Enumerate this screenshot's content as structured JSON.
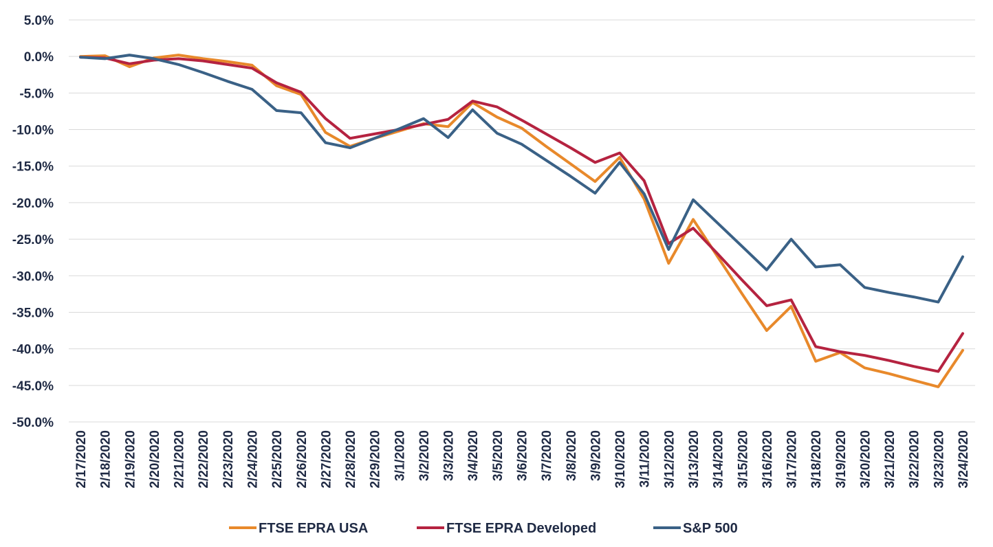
{
  "chart_data": {
    "type": "line",
    "title": "",
    "xlabel": "",
    "ylabel": "",
    "x": [
      "2/17/2020",
      "2/18/2020",
      "2/19/2020",
      "2/20/2020",
      "2/21/2020",
      "2/22/2020",
      "2/23/2020",
      "2/24/2020",
      "2/25/2020",
      "2/26/2020",
      "2/27/2020",
      "2/28/2020",
      "2/29/2020",
      "3/1/2020",
      "3/2/2020",
      "3/3/2020",
      "3/4/2020",
      "3/5/2020",
      "3/6/2020",
      "3/7/2020",
      "3/8/2020",
      "3/9/2020",
      "3/10/2020",
      "3/11/2020",
      "3/12/2020",
      "3/13/2020",
      "3/14/2020",
      "3/15/2020",
      "3/16/2020",
      "3/17/2020",
      "3/18/2020",
      "3/19/2020",
      "3/20/2020",
      "3/21/2020",
      "3/22/2020",
      "3/23/2020",
      "3/24/2020"
    ],
    "ylim": [
      -50,
      5
    ],
    "yticks": [
      5,
      0,
      -5,
      -10,
      -15,
      -20,
      -25,
      -30,
      -35,
      -40,
      -45,
      -50
    ],
    "ytick_labels": [
      "5.0%",
      "0.0%",
      "-5.0%",
      "-10.0%",
      "-15.0%",
      "-20.0%",
      "-25.0%",
      "-30.0%",
      "-35.0%",
      "-40.0%",
      "-45.0%",
      "-50.0%"
    ],
    "grid": true,
    "legend_position": "bottom",
    "series": [
      {
        "name": "FTSE EPRA USA",
        "color": "#E8892B",
        "values": [
          0.0,
          0.1,
          -1.4,
          -0.2,
          0.2,
          -0.3,
          -0.7,
          -1.2,
          -4.0,
          -5.2,
          -10.4,
          -12.3,
          -11.2,
          -10.2,
          -9.2,
          -9.6,
          -6.3,
          -8.3,
          -9.8,
          -12.3,
          -14.7,
          -17.1,
          -13.8,
          -19.5,
          -28.3,
          -22.3,
          -27.4,
          -32.5,
          -37.5,
          -34.2,
          -41.7,
          -40.5,
          -42.6,
          -43.4,
          -44.3,
          -45.2,
          -40.2
        ]
      },
      {
        "name": "FTSE EPRA Developed",
        "color": "#B52340",
        "values": [
          -0.1,
          -0.2,
          -1.0,
          -0.5,
          -0.3,
          -0.6,
          -1.1,
          -1.6,
          -3.6,
          -4.9,
          -8.5,
          -11.2,
          -10.6,
          -10.0,
          -9.3,
          -8.6,
          -6.1,
          -6.9,
          -8.7,
          -10.6,
          -12.5,
          -14.5,
          -13.2,
          -17.0,
          -25.6,
          -23.5,
          -27.0,
          -30.6,
          -34.1,
          -33.3,
          -39.7,
          -40.4,
          -40.9,
          -41.6,
          -42.4,
          -43.1,
          -37.9
        ]
      },
      {
        "name": "S&P 500",
        "color": "#3A6186",
        "values": [
          -0.1,
          -0.3,
          0.2,
          -0.3,
          -1.1,
          -2.2,
          -3.4,
          -4.5,
          -7.4,
          -7.7,
          -11.8,
          -12.5,
          -11.2,
          -9.9,
          -8.5,
          -11.1,
          -7.3,
          -10.5,
          -12.0,
          -14.2,
          -16.4,
          -18.7,
          -14.5,
          -18.8,
          -26.4,
          -19.6,
          -22.8,
          -26.0,
          -29.2,
          -25.0,
          -28.8,
          -28.5,
          -31.6,
          -32.3,
          -32.9,
          -33.6,
          -27.4
        ]
      }
    ]
  }
}
